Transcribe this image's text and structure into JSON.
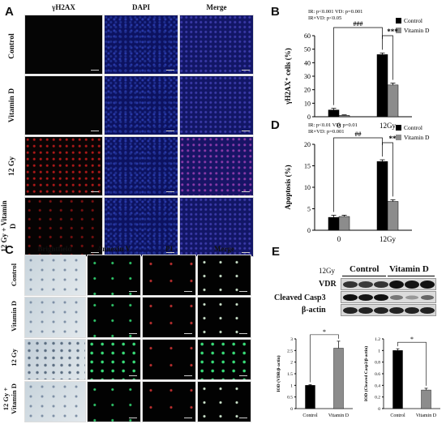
{
  "panels": {
    "a": {
      "letter": "A",
      "columns": [
        "γH2AX",
        "DAPI",
        "Merge"
      ],
      "rows": [
        "Control",
        "Vitamin D",
        "12 Gy",
        "12 Gy + Vitamin D"
      ]
    },
    "c": {
      "letter": "C",
      "columns": [
        "Brightfield",
        "Annexin V",
        "PI",
        "Merge"
      ],
      "rows": [
        "Control",
        "Vitamin D",
        "12 Gy",
        "12 Gy + Vitamin D"
      ]
    },
    "e": {
      "letter": "E",
      "header_label": "12Gy",
      "group_labels": [
        "Control",
        "Vitamin D"
      ],
      "bands": [
        "VDR",
        "Cleaved Casp3",
        "β-actin"
      ]
    }
  },
  "chart_data": [
    {
      "id": "B",
      "type": "bar",
      "categories": [
        "0",
        "12Gy"
      ],
      "series": [
        {
          "name": "Control",
          "values": [
            5,
            46
          ],
          "errors": [
            1.2,
            1.2
          ],
          "color": "#000000"
        },
        {
          "name": "Vitamin D",
          "values": [
            1,
            23.5
          ],
          "errors": [
            0.4,
            1.4
          ],
          "color": "#8c8c8c"
        }
      ],
      "ylabel": "γH2AX⁺ cells (%)",
      "ylim": [
        0,
        60
      ],
      "yticks": [
        0,
        10,
        20,
        30,
        40,
        50,
        60
      ],
      "stats_lines": [
        "IR: p<0.001  VD: p=0.001",
        "IR×VD: p<0.05"
      ],
      "annotations": [
        "###",
        "***"
      ],
      "legend": "top-right"
    },
    {
      "id": "D",
      "type": "bar",
      "categories": [
        "0",
        "12Gy"
      ],
      "series": [
        {
          "name": "Control",
          "values": [
            3,
            16
          ],
          "errors": [
            0.5,
            0.4
          ],
          "color": "#000000"
        },
        {
          "name": "Vitamin D",
          "values": [
            3.2,
            6.7
          ],
          "errors": [
            0.3,
            0.4
          ],
          "color": "#8c8c8c"
        }
      ],
      "ylabel": "Apoptosis (%)",
      "ylim": [
        0,
        20
      ],
      "yticks": [
        0,
        5,
        10,
        15,
        20
      ],
      "stats_lines": [
        "IR: p<0.01  VD: p=0.01",
        "IR×VD: p=0.001"
      ],
      "annotations": [
        "##",
        "**"
      ],
      "legend": "top-right"
    },
    {
      "id": "E-VDR",
      "type": "bar",
      "categories": [
        "Control",
        "Vitamin D"
      ],
      "series": [
        {
          "values": [
            1,
            2.6
          ],
          "errors": [
            0.03,
            0.3
          ],
          "colors": [
            "#000000",
            "#8c8c8c"
          ]
        }
      ],
      "ylabel": "IOD (VDR/β-actin)",
      "ylim": [
        0,
        3
      ],
      "yticks": [
        0,
        0.5,
        1,
        1.5,
        2,
        2.5,
        3
      ],
      "annotations": [
        "*"
      ]
    },
    {
      "id": "E-Casp3",
      "type": "bar",
      "categories": [
        "Control",
        "Vitamin D"
      ],
      "series": [
        {
          "values": [
            1,
            0.32
          ],
          "errors": [
            0.03,
            0.03
          ],
          "colors": [
            "#000000",
            "#8c8c8c"
          ]
        }
      ],
      "ylabel": "IOD (Cleaved Casp3/β-actin)",
      "ylim": [
        0,
        1.2
      ],
      "yticks": [
        0,
        0.2,
        0.4,
        0.6,
        0.8,
        1,
        1.2
      ],
      "annotations": [
        "*"
      ]
    }
  ]
}
